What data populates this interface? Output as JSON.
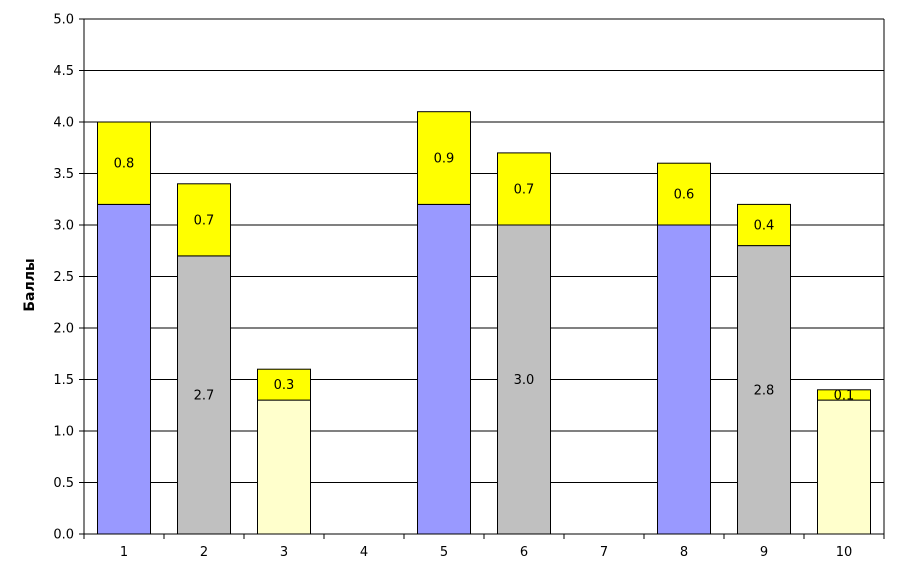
{
  "chart_data": {
    "type": "bar",
    "stacked": true,
    "title": "",
    "xlabel": "",
    "ylabel": "Баллы",
    "ylim": [
      0,
      5
    ],
    "yticks": [
      "0.0",
      "0.5",
      "1.0",
      "1.5",
      "2.0",
      "2.5",
      "3.0",
      "3.5",
      "4.0",
      "4.5",
      "5.0"
    ],
    "grid": true,
    "legend": "none",
    "categories": [
      "1",
      "2",
      "3",
      "4",
      "5",
      "6",
      "7",
      "8",
      "9",
      "10"
    ],
    "series": [
      {
        "values": [
          3.2,
          2.7,
          1.3,
          0,
          3.2,
          3.0,
          0,
          3.0,
          2.8,
          1.3
        ],
        "colors": [
          "#9999ff",
          "#c0c0c0",
          "#ffffcc",
          null,
          "#9999ff",
          "#c0c0c0",
          null,
          "#9999ff",
          "#c0c0c0",
          "#ffffcc"
        ],
        "labels": [
          "",
          "2.7",
          "",
          "",
          "",
          "3.0",
          "",
          "",
          "2.8",
          ""
        ]
      },
      {
        "values": [
          0.8,
          0.7,
          0.3,
          0,
          0.9,
          0.7,
          0,
          0.6,
          0.4,
          0.1
        ],
        "color": "#ffff00",
        "labels": [
          "0.8",
          "0.7",
          "0.3",
          "",
          "0.9",
          "0.7",
          "",
          "0.6",
          "0.4",
          "0.1"
        ]
      }
    ]
  }
}
